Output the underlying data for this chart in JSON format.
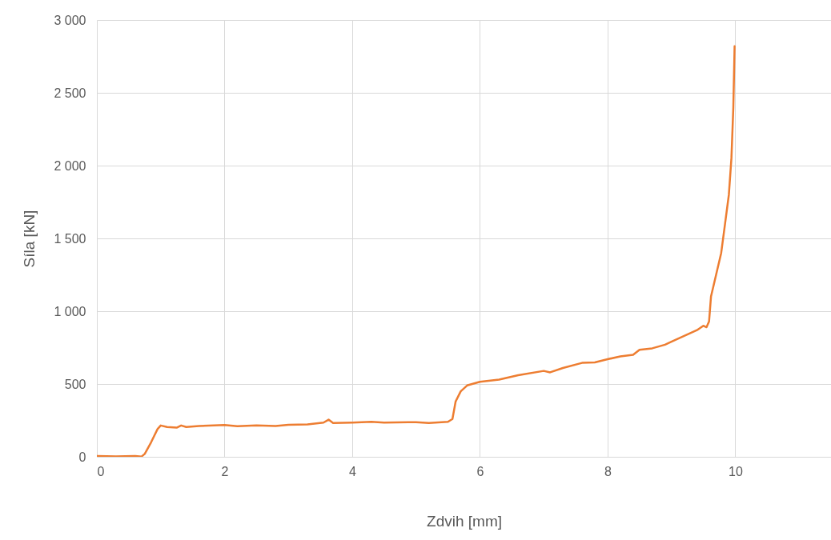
{
  "chart_data": {
    "type": "line",
    "xlabel": "Zdvih [mm]",
    "ylabel": "Síla [kN]",
    "xlim": [
      0,
      11.5
    ],
    "ylim": [
      0,
      3000
    ],
    "xticks": [
      0,
      2,
      4,
      6,
      8,
      10
    ],
    "yticks": [
      0,
      500,
      {
        "value": 1000,
        "label": "1 000"
      },
      {
        "value": 1500,
        "label": "1 500"
      },
      {
        "value": 2000,
        "label": "2 000"
      },
      {
        "value": 2500,
        "label": "2 500"
      },
      {
        "value": 3000,
        "label": "3 000"
      }
    ],
    "grid": true,
    "line_style": "solid",
    "series": [
      {
        "color": "#ed7d31",
        "x": [
          0,
          0.3,
          0.6,
          0.7,
          0.75,
          0.85,
          0.95,
          1.0,
          1.1,
          1.25,
          1.32,
          1.4,
          1.6,
          2.0,
          2.2,
          2.5,
          2.8,
          3.0,
          3.3,
          3.55,
          3.63,
          3.7,
          4.0,
          4.3,
          4.5,
          5.0,
          5.2,
          5.5,
          5.57,
          5.62,
          5.7,
          5.8,
          6.0,
          6.3,
          6.6,
          7.0,
          7.1,
          7.3,
          7.6,
          7.8,
          8.0,
          8.2,
          8.4,
          8.5,
          8.7,
          8.9,
          9.0,
          9.2,
          9.4,
          9.5,
          9.55,
          9.59,
          9.62,
          9.7,
          9.78,
          9.84,
          9.9,
          9.94,
          9.97,
          9.99
        ],
        "values": [
          5,
          3,
          5,
          2,
          20,
          100,
          190,
          215,
          205,
          200,
          215,
          205,
          212,
          218,
          210,
          215,
          212,
          220,
          222,
          235,
          255,
          232,
          235,
          240,
          235,
          238,
          232,
          240,
          260,
          380,
          450,
          490,
          515,
          530,
          560,
          590,
          580,
          610,
          645,
          648,
          670,
          690,
          700,
          735,
          745,
          770,
          790,
          830,
          870,
          900,
          890,
          930,
          1100,
          1250,
          1400,
          1600,
          1800,
          2050,
          2400,
          2820
        ]
      }
    ]
  }
}
